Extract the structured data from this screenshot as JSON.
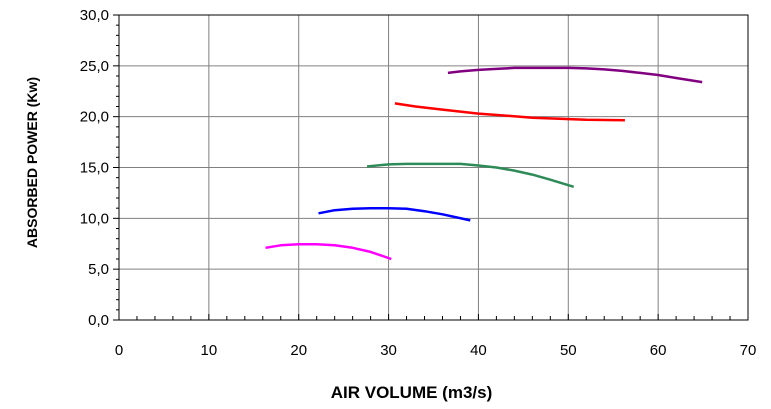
{
  "chart_data": {
    "type": "line",
    "title": "",
    "xlabel": "AIR VOLUME (m3/s)",
    "ylabel": "ABSORBED POWER (Kw)",
    "xlim": [
      0,
      70
    ],
    "ylim": [
      0,
      30
    ],
    "x_ticks": [
      0,
      10,
      20,
      30,
      40,
      50,
      60,
      70
    ],
    "x_tick_labels": [
      "0",
      "10",
      "20",
      "30",
      "40",
      "50",
      "60",
      "70"
    ],
    "y_ticks": [
      0,
      5,
      10,
      15,
      20,
      25,
      30
    ],
    "y_tick_labels": [
      "0,0",
      "5,0",
      "10,0",
      "15,0",
      "20,0",
      "25,0",
      "30,0"
    ],
    "grid": true,
    "legend": "none",
    "series": [
      {
        "color": "#ff00ff",
        "x": [
          16.3,
          18,
          20,
          22,
          24,
          26,
          28,
          30.3
        ],
        "y": [
          7.1,
          7.35,
          7.45,
          7.45,
          7.35,
          7.1,
          6.7,
          6.0
        ]
      },
      {
        "color": "#0000ff",
        "x": [
          22.2,
          24,
          26,
          28,
          30,
          32,
          34,
          36,
          39.1
        ],
        "y": [
          10.5,
          10.8,
          10.95,
          11.0,
          11.0,
          10.95,
          10.7,
          10.4,
          9.8
        ]
      },
      {
        "color": "#2e8b57",
        "x": [
          27.6,
          30,
          32,
          35,
          38,
          40,
          42,
          44,
          46,
          48,
          50.6
        ],
        "y": [
          15.1,
          15.3,
          15.35,
          15.35,
          15.35,
          15.2,
          15.0,
          14.7,
          14.3,
          13.8,
          13.1
        ]
      },
      {
        "color": "#ff0000",
        "x": [
          30.7,
          33,
          36,
          40,
          43,
          46,
          49,
          52,
          56.3
        ],
        "y": [
          21.3,
          21.0,
          20.7,
          20.3,
          20.1,
          19.9,
          19.8,
          19.7,
          19.65
        ]
      },
      {
        "color": "#800080",
        "x": [
          36.6,
          38,
          40,
          42,
          44,
          46,
          48,
          50,
          52,
          54,
          56,
          58,
          60,
          62,
          64.9
        ],
        "y": [
          24.3,
          24.45,
          24.6,
          24.7,
          24.8,
          24.8,
          24.8,
          24.8,
          24.75,
          24.65,
          24.5,
          24.3,
          24.1,
          23.8,
          23.4
        ]
      }
    ]
  }
}
